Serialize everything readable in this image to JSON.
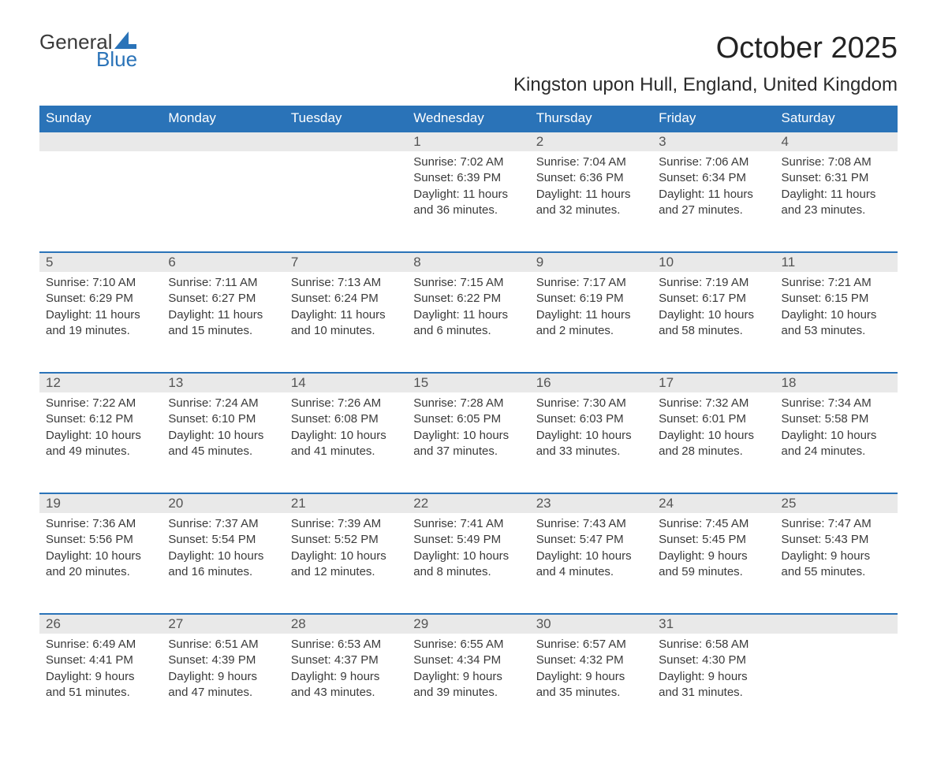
{
  "logo": {
    "word1": "General",
    "word2": "Blue",
    "accent_color": "#2a73b8"
  },
  "title": "October 2025",
  "subtitle": "Kingston upon Hull, England, United Kingdom",
  "colors": {
    "header_bg": "#2a73b8",
    "header_text": "#ffffff",
    "daynum_bg": "#e9e9e9",
    "daynum_text": "#555555",
    "body_text": "#3a3a3a",
    "row_divider": "#2a73b8",
    "page_bg": "#ffffff"
  },
  "fonts": {
    "family": "Arial",
    "title_size_pt": 29,
    "subtitle_size_pt": 18,
    "header_size_pt": 13,
    "cell_size_pt": 11
  },
  "weekdays": [
    "Sunday",
    "Monday",
    "Tuesday",
    "Wednesday",
    "Thursday",
    "Friday",
    "Saturday"
  ],
  "weeks": [
    [
      null,
      null,
      null,
      {
        "n": "1",
        "sr": "Sunrise: 7:02 AM",
        "ss": "Sunset: 6:39 PM",
        "d1": "Daylight: 11 hours",
        "d2": "and 36 minutes."
      },
      {
        "n": "2",
        "sr": "Sunrise: 7:04 AM",
        "ss": "Sunset: 6:36 PM",
        "d1": "Daylight: 11 hours",
        "d2": "and 32 minutes."
      },
      {
        "n": "3",
        "sr": "Sunrise: 7:06 AM",
        "ss": "Sunset: 6:34 PM",
        "d1": "Daylight: 11 hours",
        "d2": "and 27 minutes."
      },
      {
        "n": "4",
        "sr": "Sunrise: 7:08 AM",
        "ss": "Sunset: 6:31 PM",
        "d1": "Daylight: 11 hours",
        "d2": "and 23 minutes."
      }
    ],
    [
      {
        "n": "5",
        "sr": "Sunrise: 7:10 AM",
        "ss": "Sunset: 6:29 PM",
        "d1": "Daylight: 11 hours",
        "d2": "and 19 minutes."
      },
      {
        "n": "6",
        "sr": "Sunrise: 7:11 AM",
        "ss": "Sunset: 6:27 PM",
        "d1": "Daylight: 11 hours",
        "d2": "and 15 minutes."
      },
      {
        "n": "7",
        "sr": "Sunrise: 7:13 AM",
        "ss": "Sunset: 6:24 PM",
        "d1": "Daylight: 11 hours",
        "d2": "and 10 minutes."
      },
      {
        "n": "8",
        "sr": "Sunrise: 7:15 AM",
        "ss": "Sunset: 6:22 PM",
        "d1": "Daylight: 11 hours",
        "d2": "and 6 minutes."
      },
      {
        "n": "9",
        "sr": "Sunrise: 7:17 AM",
        "ss": "Sunset: 6:19 PM",
        "d1": "Daylight: 11 hours",
        "d2": "and 2 minutes."
      },
      {
        "n": "10",
        "sr": "Sunrise: 7:19 AM",
        "ss": "Sunset: 6:17 PM",
        "d1": "Daylight: 10 hours",
        "d2": "and 58 minutes."
      },
      {
        "n": "11",
        "sr": "Sunrise: 7:21 AM",
        "ss": "Sunset: 6:15 PM",
        "d1": "Daylight: 10 hours",
        "d2": "and 53 minutes."
      }
    ],
    [
      {
        "n": "12",
        "sr": "Sunrise: 7:22 AM",
        "ss": "Sunset: 6:12 PM",
        "d1": "Daylight: 10 hours",
        "d2": "and 49 minutes."
      },
      {
        "n": "13",
        "sr": "Sunrise: 7:24 AM",
        "ss": "Sunset: 6:10 PM",
        "d1": "Daylight: 10 hours",
        "d2": "and 45 minutes."
      },
      {
        "n": "14",
        "sr": "Sunrise: 7:26 AM",
        "ss": "Sunset: 6:08 PM",
        "d1": "Daylight: 10 hours",
        "d2": "and 41 minutes."
      },
      {
        "n": "15",
        "sr": "Sunrise: 7:28 AM",
        "ss": "Sunset: 6:05 PM",
        "d1": "Daylight: 10 hours",
        "d2": "and 37 minutes."
      },
      {
        "n": "16",
        "sr": "Sunrise: 7:30 AM",
        "ss": "Sunset: 6:03 PM",
        "d1": "Daylight: 10 hours",
        "d2": "and 33 minutes."
      },
      {
        "n": "17",
        "sr": "Sunrise: 7:32 AM",
        "ss": "Sunset: 6:01 PM",
        "d1": "Daylight: 10 hours",
        "d2": "and 28 minutes."
      },
      {
        "n": "18",
        "sr": "Sunrise: 7:34 AM",
        "ss": "Sunset: 5:58 PM",
        "d1": "Daylight: 10 hours",
        "d2": "and 24 minutes."
      }
    ],
    [
      {
        "n": "19",
        "sr": "Sunrise: 7:36 AM",
        "ss": "Sunset: 5:56 PM",
        "d1": "Daylight: 10 hours",
        "d2": "and 20 minutes."
      },
      {
        "n": "20",
        "sr": "Sunrise: 7:37 AM",
        "ss": "Sunset: 5:54 PM",
        "d1": "Daylight: 10 hours",
        "d2": "and 16 minutes."
      },
      {
        "n": "21",
        "sr": "Sunrise: 7:39 AM",
        "ss": "Sunset: 5:52 PM",
        "d1": "Daylight: 10 hours",
        "d2": "and 12 minutes."
      },
      {
        "n": "22",
        "sr": "Sunrise: 7:41 AM",
        "ss": "Sunset: 5:49 PM",
        "d1": "Daylight: 10 hours",
        "d2": "and 8 minutes."
      },
      {
        "n": "23",
        "sr": "Sunrise: 7:43 AM",
        "ss": "Sunset: 5:47 PM",
        "d1": "Daylight: 10 hours",
        "d2": "and 4 minutes."
      },
      {
        "n": "24",
        "sr": "Sunrise: 7:45 AM",
        "ss": "Sunset: 5:45 PM",
        "d1": "Daylight: 9 hours",
        "d2": "and 59 minutes."
      },
      {
        "n": "25",
        "sr": "Sunrise: 7:47 AM",
        "ss": "Sunset: 5:43 PM",
        "d1": "Daylight: 9 hours",
        "d2": "and 55 minutes."
      }
    ],
    [
      {
        "n": "26",
        "sr": "Sunrise: 6:49 AM",
        "ss": "Sunset: 4:41 PM",
        "d1": "Daylight: 9 hours",
        "d2": "and 51 minutes."
      },
      {
        "n": "27",
        "sr": "Sunrise: 6:51 AM",
        "ss": "Sunset: 4:39 PM",
        "d1": "Daylight: 9 hours",
        "d2": "and 47 minutes."
      },
      {
        "n": "28",
        "sr": "Sunrise: 6:53 AM",
        "ss": "Sunset: 4:37 PM",
        "d1": "Daylight: 9 hours",
        "d2": "and 43 minutes."
      },
      {
        "n": "29",
        "sr": "Sunrise: 6:55 AM",
        "ss": "Sunset: 4:34 PM",
        "d1": "Daylight: 9 hours",
        "d2": "and 39 minutes."
      },
      {
        "n": "30",
        "sr": "Sunrise: 6:57 AM",
        "ss": "Sunset: 4:32 PM",
        "d1": "Daylight: 9 hours",
        "d2": "and 35 minutes."
      },
      {
        "n": "31",
        "sr": "Sunrise: 6:58 AM",
        "ss": "Sunset: 4:30 PM",
        "d1": "Daylight: 9 hours",
        "d2": "and 31 minutes."
      },
      null
    ]
  ]
}
